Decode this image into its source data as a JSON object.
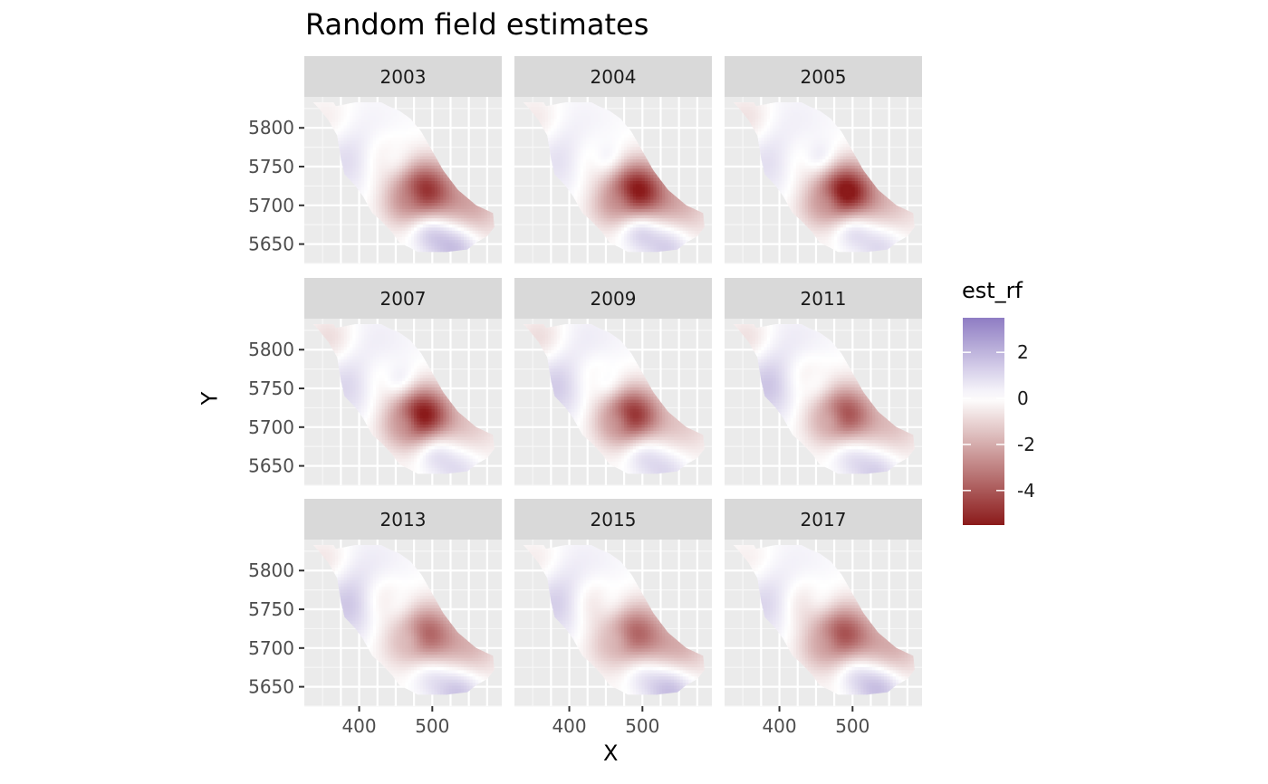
{
  "chart_data": {
    "type": "heatmap",
    "title": "Random field estimates",
    "xlabel": "X",
    "ylabel": "Y",
    "facets": [
      "2003",
      "2004",
      "2005",
      "2007",
      "2009",
      "2011",
      "2013",
      "2015",
      "2017"
    ],
    "facet_layout": {
      "rows": 3,
      "cols": 3
    },
    "x_ticks": [
      400,
      500
    ],
    "y_ticks": [
      5650,
      5700,
      5750,
      5800
    ],
    "xlim": [
      325,
      595
    ],
    "ylim": [
      5625,
      5840
    ],
    "legend": {
      "title": "est_rf",
      "ticks": [
        2,
        0,
        -2,
        -4
      ],
      "range": [
        -5.5,
        3.5
      ],
      "position": "right"
    },
    "colors": {
      "high": "#8e7cc3",
      "mid": "#ffffff",
      "low": "#8b1a1a",
      "panel_bg": "#ebebeb",
      "strip_bg": "#d9d9d9"
    },
    "grid": true
  }
}
